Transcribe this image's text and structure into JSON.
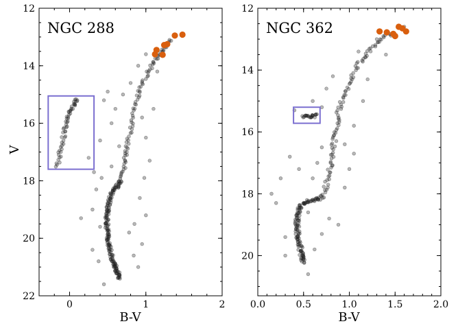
{
  "chart_data": [
    {
      "type": "scatter",
      "title": "NGC 288",
      "xlabel": "B-V",
      "ylabel": "V",
      "xlim": [
        -0.4,
        2.0
      ],
      "ylim": [
        22,
        12
      ],
      "y_inverted": true,
      "xticks": [
        "0",
        "1",
        "2"
      ],
      "yticks": [
        "12",
        "14",
        "16",
        "18",
        "20",
        "22"
      ],
      "grid": false,
      "series": [
        {
          "role": "members",
          "color": "#555555",
          "tracks": [
            {
              "kind": "main-sequence",
              "points": [
                [
                  0.66,
                  21.4
                ],
                [
                  0.63,
                  21.2
                ],
                [
                  0.6,
                  21.0
                ],
                [
                  0.57,
                  20.8
                ],
                [
                  0.54,
                  20.5
                ],
                [
                  0.52,
                  20.2
                ],
                [
                  0.5,
                  19.9
                ],
                [
                  0.49,
                  19.6
                ],
                [
                  0.49,
                  19.3
                ],
                [
                  0.5,
                  19.0
                ],
                [
                  0.52,
                  18.7
                ],
                [
                  0.56,
                  18.4
                ],
                [
                  0.62,
                  18.2
                ],
                [
                  0.68,
                  18.0
                ]
              ]
            },
            {
              "kind": "red-giant-branch",
              "points": [
                [
                  0.68,
                  18.0
                ],
                [
                  0.71,
                  17.6
                ],
                [
                  0.73,
                  17.2
                ],
                [
                  0.76,
                  16.8
                ],
                [
                  0.79,
                  16.3
                ],
                [
                  0.83,
                  15.8
                ],
                [
                  0.87,
                  15.3
                ],
                [
                  0.92,
                  14.9
                ],
                [
                  0.98,
                  14.5
                ],
                [
                  1.05,
                  14.1
                ],
                [
                  1.12,
                  13.8
                ],
                [
                  1.2,
                  13.5
                ],
                [
                  1.28,
                  13.3
                ],
                [
                  1.34,
                  13.1
                ]
              ]
            },
            {
              "kind": "blue-straggler",
              "points": [
                [
                  -0.16,
                  17.5
                ],
                [
                  -0.13,
                  17.1
                ],
                [
                  -0.1,
                  16.7
                ],
                [
                  -0.07,
                  16.3
                ],
                [
                  -0.04,
                  16.0
                ],
                [
                  -0.01,
                  15.7
                ],
                [
                  0.03,
                  15.5
                ],
                [
                  0.07,
                  15.3
                ],
                [
                  0.1,
                  15.1
                ]
              ]
            }
          ],
          "scattered_points": [
            [
              0.3,
              19.0
            ],
            [
              0.45,
              21.6
            ],
            [
              0.38,
              20.8
            ],
            [
              0.9,
              21.0
            ],
            [
              0.95,
              20.2
            ],
            [
              0.85,
              19.5
            ],
            [
              1.0,
              19.2
            ],
            [
              0.92,
              18.6
            ],
            [
              0.35,
              18.3
            ],
            [
              0.32,
              17.7
            ],
            [
              0.25,
              17.2
            ],
            [
              0.4,
              16.6
            ],
            [
              0.55,
              16.0
            ],
            [
              0.6,
              15.5
            ],
            [
              0.7,
              15.0
            ],
            [
              1.0,
              16.5
            ],
            [
              1.05,
              17.3
            ],
            [
              0.98,
              17.9
            ],
            [
              0.45,
              15.2
            ],
            [
              0.9,
              14.0
            ],
            [
              1.0,
              13.6
            ],
            [
              0.65,
              16.8
            ],
            [
              0.55,
              17.5
            ],
            [
              1.1,
              15.5
            ],
            [
              0.5,
              14.9
            ],
            [
              0.8,
              14.6
            ],
            [
              0.15,
              19.3
            ],
            [
              0.3,
              20.4
            ],
            [
              0.4,
              19.6
            ],
            [
              0.75,
              17.0
            ],
            [
              0.95,
              15.8
            ],
            [
              1.15,
              14.2
            ],
            [
              0.78,
              19.8
            ],
            [
              0.84,
              20.6
            ],
            [
              0.42,
              17.9
            ]
          ]
        },
        {
          "role": "red-giant-highlight",
          "color": "#d95f0e",
          "points": [
            [
              1.38,
              12.95
            ],
            [
              1.48,
              12.92
            ],
            [
              1.28,
              13.25
            ],
            [
              1.24,
              13.28
            ],
            [
              1.14,
              13.45
            ],
            [
              1.12,
              13.6
            ],
            [
              1.22,
              13.62
            ]
          ]
        }
      ],
      "box": {
        "x": [
          -0.28,
          0.32
        ],
        "y": [
          15.05,
          17.6
        ],
        "color": "#7b6fd0"
      }
    },
    {
      "type": "scatter",
      "title": "NGC 362",
      "xlabel": "B-V",
      "ylabel": "",
      "xlim": [
        0.0,
        2.0
      ],
      "ylim": [
        21.3,
        12.0
      ],
      "y_inverted": true,
      "xticks": [
        "0.0",
        "0.5",
        "1.0",
        "1.5",
        "2.0"
      ],
      "yticks": [
        "12",
        "14",
        "16",
        "18",
        "20"
      ],
      "grid": false,
      "series": [
        {
          "role": "members",
          "color": "#555555",
          "tracks": [
            {
              "kind": "main-sequence",
              "points": [
                [
                  0.5,
                  20.2
                ],
                [
                  0.48,
                  20.0
                ],
                [
                  0.46,
                  19.7
                ],
                [
                  0.44,
                  19.4
                ],
                [
                  0.43,
                  19.1
                ],
                [
                  0.43,
                  18.8
                ],
                [
                  0.45,
                  18.5
                ],
                [
                  0.5,
                  18.3
                ],
                [
                  0.6,
                  18.2
                ],
                [
                  0.7,
                  18.15
                ]
              ]
            },
            {
              "kind": "red-giant-branch",
              "points": [
                [
                  0.7,
                  18.15
                ],
                [
                  0.74,
                  17.8
                ],
                [
                  0.77,
                  17.4
                ],
                [
                  0.8,
                  17.0
                ],
                [
                  0.82,
                  16.6
                ],
                [
                  0.84,
                  16.2
                ],
                [
                  0.86,
                  15.8
                ],
                [
                  0.88,
                  15.4
                ],
                [
                  0.92,
                  15.0
                ],
                [
                  0.97,
                  14.6
                ],
                [
                  1.03,
                  14.2
                ],
                [
                  1.1,
                  13.8
                ],
                [
                  1.18,
                  13.5
                ],
                [
                  1.28,
                  13.2
                ],
                [
                  1.38,
                  12.95
                ],
                [
                  1.5,
                  12.8
                ]
              ]
            },
            {
              "kind": "horizontal-branch",
              "points": [
                [
                  0.5,
                  15.5
                ],
                [
                  0.55,
                  15.5
                ],
                [
                  0.6,
                  15.5
                ],
                [
                  0.64,
                  15.45
                ]
              ]
            }
          ],
          "scattered_points": [
            [
              0.3,
              19.4
            ],
            [
              0.2,
              18.3
            ],
            [
              0.25,
              17.5
            ],
            [
              0.15,
              18.0
            ],
            [
              0.3,
              20.0
            ],
            [
              0.55,
              20.6
            ],
            [
              0.62,
              19.8
            ],
            [
              0.7,
              19.3
            ],
            [
              0.78,
              18.8
            ],
            [
              0.6,
              17.5
            ],
            [
              0.65,
              17.0
            ],
            [
              0.7,
              16.5
            ],
            [
              0.95,
              17.8
            ],
            [
              1.0,
              17.2
            ],
            [
              0.95,
              16.4
            ],
            [
              1.05,
              15.8
            ],
            [
              0.7,
              15.2
            ],
            [
              0.75,
              14.6
            ],
            [
              1.15,
              15.0
            ],
            [
              1.2,
              14.3
            ],
            [
              1.1,
              13.4
            ],
            [
              1.3,
              13.0
            ],
            [
              0.55,
              18.6
            ],
            [
              0.35,
              16.8
            ],
            [
              0.45,
              17.2
            ],
            [
              1.05,
              16.7
            ],
            [
              0.88,
              19.0
            ],
            [
              0.4,
              15.3
            ],
            [
              0.6,
              15.0
            ],
            [
              0.82,
              14.2
            ],
            [
              1.4,
              13.5
            ],
            [
              1.6,
              12.6
            ]
          ]
        },
        {
          "role": "red-giant-highlight",
          "color": "#d95f0e",
          "points": [
            [
              1.33,
              12.75
            ],
            [
              1.41,
              12.78
            ],
            [
              1.48,
              12.83
            ],
            [
              1.5,
              12.9
            ],
            [
              1.54,
              12.6
            ],
            [
              1.58,
              12.65
            ],
            [
              1.62,
              12.75
            ]
          ]
        }
      ],
      "box": {
        "x": [
          0.39,
          0.68
        ],
        "y": [
          15.2,
          15.72
        ],
        "color": "#7b6fd0"
      }
    }
  ]
}
